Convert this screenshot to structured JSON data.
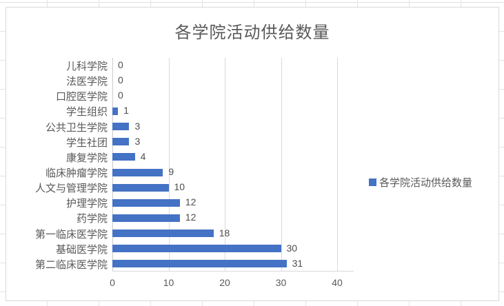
{
  "chart_data": {
    "type": "bar",
    "orientation": "horizontal",
    "title": "各学院活动供给数量",
    "legend": "各学院活动供给数量",
    "legend_position": "right",
    "categories": [
      "儿科学院",
      "法医学院",
      "口腔医学院",
      "学生组织",
      "公共卫生学院",
      "学生社团",
      "康复学院",
      "临床肿瘤学院",
      "人文与管理学院",
      "护理学院",
      "药学院",
      "第一临床医学院",
      "基础医学院",
      "第二临床医学院"
    ],
    "values": [
      0,
      0,
      0,
      1,
      3,
      3,
      4,
      9,
      10,
      12,
      12,
      18,
      30,
      31
    ],
    "x_ticks": [
      0,
      10,
      20,
      30,
      40
    ],
    "xlim": [
      0,
      40
    ],
    "grid": true,
    "data_labels": true,
    "bar_color": "#4472c4",
    "gridline_color": "#d9d9d9",
    "text_color": "#595959",
    "background_color": "#ffffff"
  }
}
